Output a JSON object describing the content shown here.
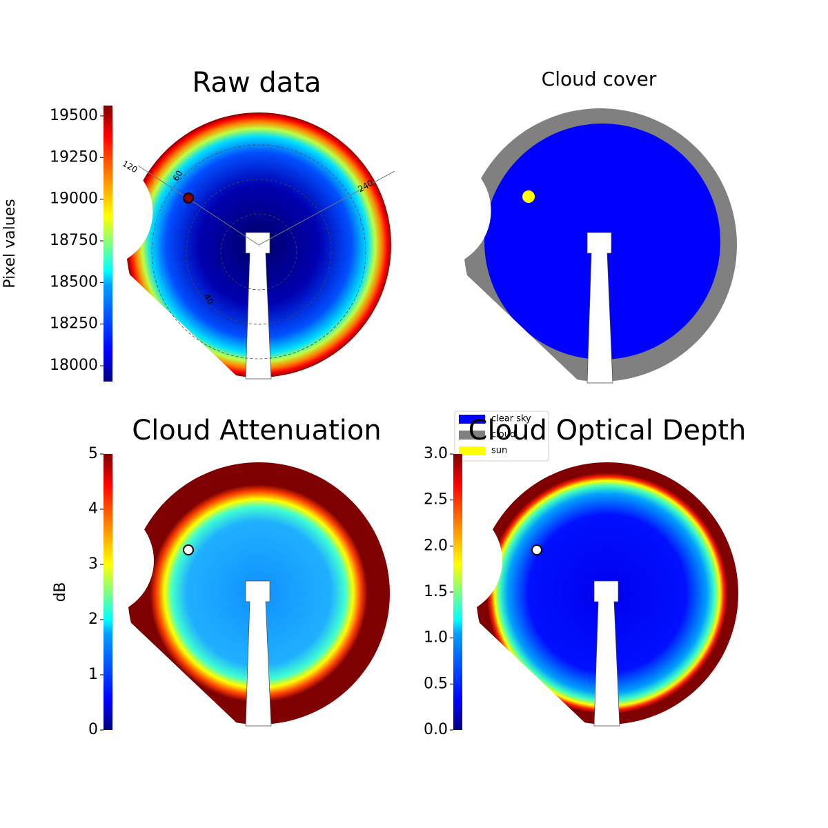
{
  "chart_data": [
    {
      "type": "heatmap",
      "title": "Raw data",
      "ylabel": "Pixel values",
      "colormap": "jet",
      "ylim": [
        17905,
        19562
      ],
      "yticks": [
        18000,
        18250,
        18500,
        18750,
        19000,
        19250,
        19500
      ],
      "annotations": [
        "120",
        "60",
        "240",
        "40"
      ]
    },
    {
      "type": "classmap",
      "title": "Cloud cover",
      "categories": [
        "clear sky",
        "cloud",
        "sun"
      ],
      "colors": [
        "#0000ff",
        "#808080",
        "#ffff00"
      ]
    },
    {
      "type": "heatmap",
      "title": "Cloud Attenuation",
      "ylabel": "dB",
      "colormap": "jet",
      "ylim": [
        0,
        5
      ],
      "yticks": [
        0,
        1,
        2,
        3,
        4,
        5
      ]
    },
    {
      "type": "heatmap",
      "title": "Cloud Optical Depth",
      "colormap": "jet",
      "ylim": [
        0,
        3
      ],
      "yticks": [
        {
          "value": 0,
          "label": "0.0"
        },
        {
          "value": 0.5,
          "label": "0.5"
        },
        {
          "value": 1,
          "label": "1.0"
        },
        {
          "value": 1.5,
          "label": "1.5"
        },
        {
          "value": 2,
          "label": "2.0"
        },
        {
          "value": 2.5,
          "label": "2.5"
        },
        {
          "value": 3,
          "label": "3.0"
        }
      ]
    }
  ]
}
